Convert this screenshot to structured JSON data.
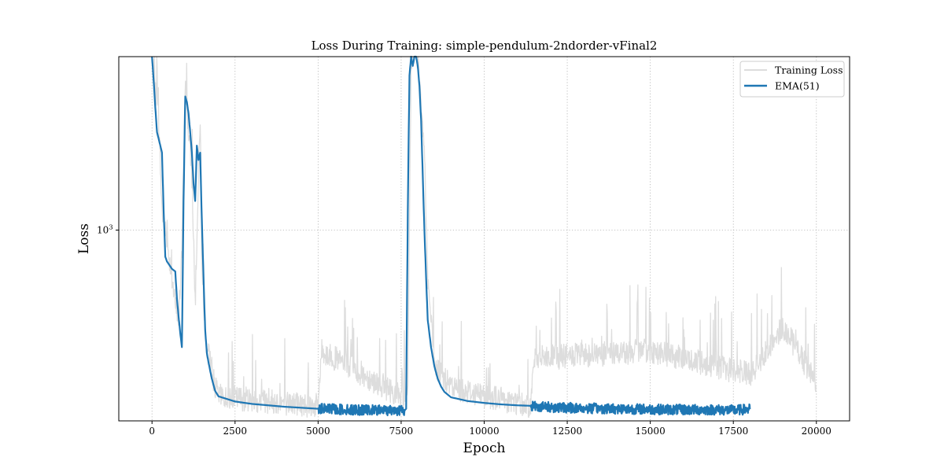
{
  "chart_data": {
    "type": "line",
    "title": "Loss During Training: simple-pendulum-2ndorder-vFinal2",
    "xlabel": "Epoch",
    "ylabel": "Loss",
    "x_scale": "linear",
    "y_scale": "log",
    "xlim": [
      -1000,
      21000
    ],
    "ylim": [
      400,
      2300
    ],
    "xticks": [
      0,
      2500,
      5000,
      7500,
      10000,
      12500,
      15000,
      17500,
      20000
    ],
    "xtick_labels": [
      "0",
      "2500",
      "5000",
      "7500",
      "10000",
      "12500",
      "15000",
      "17500",
      "20000"
    ],
    "yticks": [
      1000
    ],
    "ytick_labels": [
      "10",
      "3"
    ],
    "grid": true,
    "legend_position": "top-right",
    "series": [
      {
        "name": "Training Loss",
        "color": "#dddddd",
        "style": "noisy raw loss, spiky",
        "x": [
          0,
          200,
          300,
          500,
          700,
          800,
          900,
          1000,
          1200,
          1300,
          1450,
          1500,
          1600,
          1900,
          2000,
          5000,
          5100,
          7500,
          7700,
          7800,
          8000,
          8200,
          8300,
          8500,
          9000,
          11400,
          11500,
          15000,
          18000,
          19000,
          20000
        ],
        "y": [
          2300,
          1700,
          1100,
          900,
          700,
          650,
          900,
          2000,
          1300,
          700,
          1700,
          900,
          600,
          470,
          450,
          430,
          560,
          450,
          440,
          2300,
          2300,
          1500,
          800,
          520,
          470,
          430,
          540,
          560,
          500,
          630,
          480
        ]
      },
      {
        "name": "EMA(51)",
        "color": "#1f77b4",
        "x": [
          0,
          50,
          100,
          150,
          200,
          250,
          300,
          350,
          400,
          450,
          500,
          600,
          700,
          750,
          800,
          850,
          900,
          950,
          1000,
          1050,
          1100,
          1150,
          1200,
          1250,
          1300,
          1350,
          1400,
          1450,
          1500,
          1550,
          1600,
          1650,
          1700,
          1800,
          1900,
          2000,
          2500,
          3000,
          3500,
          4000,
          4500,
          5000,
          5500,
          6000,
          6500,
          7000,
          7500,
          7600,
          7650,
          7700,
          7750,
          7800,
          7850,
          7900,
          7950,
          8000,
          8050,
          8100,
          8150,
          8200,
          8250,
          8300,
          8400,
          8500,
          8600,
          8700,
          8800,
          9000,
          9500,
          10000,
          10500,
          11000,
          11400,
          12000,
          13000,
          14000,
          15000,
          16000,
          17000,
          17500,
          18000
        ],
        "y": [
          2300,
          2050,
          1800,
          1600,
          1550,
          1500,
          1450,
          1100,
          880,
          860,
          850,
          830,
          820,
          720,
          660,
          610,
          570,
          1150,
          1900,
          1850,
          1750,
          1600,
          1450,
          1250,
          1150,
          1500,
          1400,
          1450,
          1050,
          800,
          620,
          555,
          530,
          490,
          462,
          450,
          439,
          434,
          431,
          428,
          426,
          424,
          423,
          422,
          421,
          421,
          421,
          420,
          424,
          1100,
          2100,
          2300,
          2200,
          2300,
          2300,
          2200,
          2000,
          1700,
          1300,
          1000,
          800,
          650,
          570,
          520,
          490,
          472,
          460,
          448,
          440,
          436,
          433,
          431,
          430,
          427,
          425,
          424,
          423,
          422,
          422,
          421,
          423
        ]
      }
    ]
  }
}
